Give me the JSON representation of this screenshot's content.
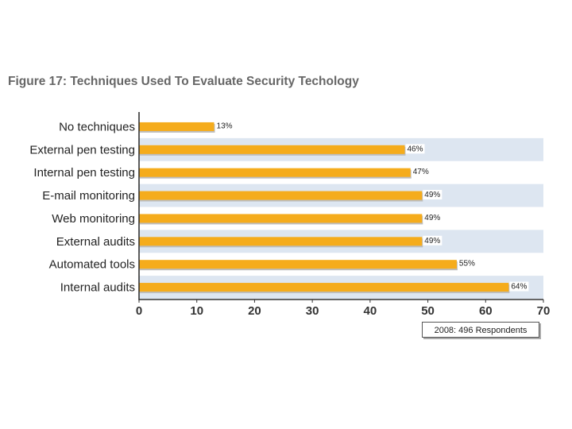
{
  "chart_data": {
    "type": "bar",
    "orientation": "horizontal",
    "title": "Figure 17: Techniques Used To Evaluate Security Techology",
    "categories": [
      "No techniques",
      "External pen testing",
      "Internal pen testing",
      "E-mail monitoring",
      "Web monitoring",
      "External audits",
      "Automated tools",
      "Internal audits"
    ],
    "values": [
      13,
      46,
      47,
      49,
      49,
      49,
      55,
      64
    ],
    "data_labels": [
      "13%",
      "46%",
      "47%",
      "49%",
      "49%",
      "49%",
      "55%",
      "64%"
    ],
    "xlim": [
      0,
      70
    ],
    "xticks": [
      "0",
      "10",
      "20",
      "30",
      "40",
      "50",
      "60",
      "70"
    ],
    "bar_color": "#f5ac1c",
    "band_color": "#dde6f1",
    "annotation": "2008: 496 Respondents",
    "grid": false
  }
}
